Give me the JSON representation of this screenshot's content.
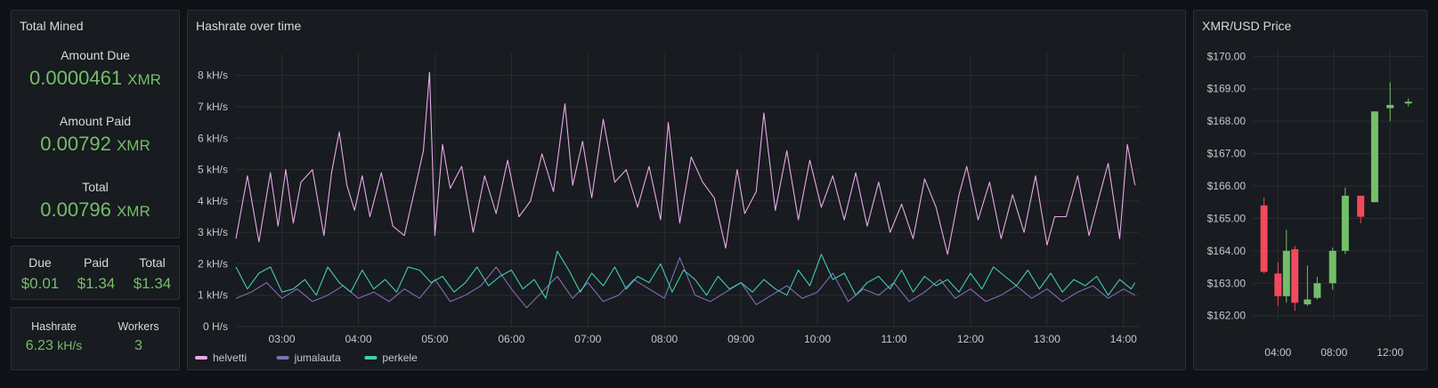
{
  "total_mined": {
    "title": "Total Mined",
    "amount_due_label": "Amount Due",
    "amount_due_value": "0.0000461",
    "amount_paid_label": "Amount Paid",
    "amount_paid_value": "0.00792",
    "total_label": "Total",
    "total_value": "0.00796",
    "unit": "XMR"
  },
  "usd_values": {
    "due_label": "Due",
    "due_value": "$0.01",
    "paid_label": "Paid",
    "paid_value": "$1.34",
    "total_label": "Total",
    "total_value": "$1.34"
  },
  "hashrate_stat": {
    "hashrate_label": "Hashrate",
    "hashrate_value": "6.23",
    "hashrate_unit": "kH/s",
    "workers_label": "Workers",
    "workers_value": "3"
  },
  "chart_data": [
    {
      "type": "line",
      "title": "Hashrate over time",
      "y_ticks": [
        "0 H/s",
        "1 kH/s",
        "2 kH/s",
        "3 kH/s",
        "4 kH/s",
        "5 kH/s",
        "6 kH/s",
        "7 kH/s",
        "8 kH/s"
      ],
      "ylim": [
        0,
        8.7
      ],
      "x_ticks": [
        "03:00",
        "04:00",
        "05:00",
        "06:00",
        "07:00",
        "08:00",
        "09:00",
        "10:00",
        "11:00",
        "12:00",
        "13:00",
        "14:00"
      ],
      "x_hours": [
        3,
        4,
        5,
        6,
        7,
        8,
        9,
        10,
        11,
        12,
        13,
        14
      ],
      "xlim": [
        2.4,
        14.2
      ],
      "grid": true,
      "legend_position": "bottom-left",
      "series": [
        {
          "name": "helvetti",
          "color": "#e8a9e8",
          "x": [
            2.4,
            2.55,
            2.7,
            2.85,
            2.95,
            3.05,
            3.15,
            3.25,
            3.4,
            3.55,
            3.65,
            3.75,
            3.85,
            3.95,
            4.05,
            4.15,
            4.3,
            4.45,
            4.6,
            4.75,
            4.85,
            4.93,
            5.0,
            5.1,
            5.2,
            5.35,
            5.5,
            5.65,
            5.8,
            5.95,
            6.1,
            6.25,
            6.4,
            6.55,
            6.7,
            6.8,
            6.93,
            7.05,
            7.2,
            7.35,
            7.5,
            7.65,
            7.8,
            7.95,
            8.05,
            8.2,
            8.35,
            8.5,
            8.65,
            8.8,
            8.95,
            9.05,
            9.2,
            9.3,
            9.45,
            9.6,
            9.75,
            9.9,
            10.05,
            10.2,
            10.35,
            10.5,
            10.65,
            10.8,
            10.95,
            11.1,
            11.25,
            11.4,
            11.55,
            11.7,
            11.85,
            11.95,
            12.1,
            12.25,
            12.4,
            12.55,
            12.7,
            12.85,
            13.0,
            13.1,
            13.25,
            13.4,
            13.55,
            13.7,
            13.8,
            13.95,
            14.05,
            14.15
          ],
          "values": [
            2.8,
            4.8,
            2.7,
            4.9,
            3.2,
            5.0,
            3.3,
            4.6,
            5.0,
            2.9,
            4.9,
            6.2,
            4.5,
            3.7,
            4.8,
            3.5,
            4.9,
            3.2,
            2.9,
            4.5,
            5.6,
            8.1,
            2.9,
            5.8,
            4.4,
            5.1,
            3.0,
            4.8,
            3.6,
            5.3,
            3.5,
            4.0,
            5.5,
            4.3,
            7.1,
            4.5,
            5.9,
            4.1,
            6.6,
            4.6,
            5.0,
            3.8,
            5.1,
            3.4,
            6.5,
            3.3,
            5.4,
            4.6,
            4.1,
            2.5,
            5.0,
            3.6,
            4.3,
            6.8,
            3.7,
            5.6,
            3.4,
            5.3,
            3.8,
            4.8,
            3.4,
            4.9,
            3.2,
            4.6,
            3.0,
            3.9,
            2.8,
            4.7,
            3.8,
            2.3,
            4.2,
            5.1,
            3.4,
            4.6,
            2.8,
            4.2,
            3.0,
            4.8,
            2.6,
            3.5,
            3.5,
            4.8,
            2.9,
            4.3,
            5.2,
            2.8,
            5.8,
            4.5
          ]
        },
        {
          "name": "jumalauta",
          "color": "#806eb7",
          "x": [
            2.4,
            2.6,
            2.8,
            3.0,
            3.2,
            3.4,
            3.6,
            3.8,
            4.0,
            4.2,
            4.4,
            4.6,
            4.8,
            5.0,
            5.2,
            5.4,
            5.6,
            5.8,
            6.0,
            6.2,
            6.4,
            6.6,
            6.8,
            7.0,
            7.2,
            7.4,
            7.6,
            7.8,
            8.0,
            8.2,
            8.4,
            8.6,
            8.8,
            9.0,
            9.2,
            9.4,
            9.6,
            9.8,
            10.0,
            10.2,
            10.4,
            10.6,
            10.8,
            11.0,
            11.2,
            11.4,
            11.6,
            11.8,
            12.0,
            12.2,
            12.4,
            12.6,
            12.8,
            13.0,
            13.2,
            13.4,
            13.6,
            13.8,
            14.0,
            14.15
          ],
          "values": [
            0.9,
            1.1,
            1.4,
            0.9,
            1.2,
            0.8,
            1.0,
            1.3,
            0.9,
            1.1,
            0.8,
            1.2,
            0.9,
            1.5,
            0.8,
            1.0,
            1.3,
            1.9,
            1.2,
            0.6,
            1.1,
            1.6,
            0.9,
            1.4,
            0.8,
            1.0,
            1.5,
            1.2,
            0.9,
            2.2,
            1.0,
            0.8,
            1.1,
            1.4,
            0.7,
            1.0,
            1.3,
            0.9,
            1.1,
            1.7,
            0.8,
            1.2,
            1.0,
            1.4,
            0.8,
            1.1,
            1.5,
            0.9,
            1.2,
            0.8,
            1.0,
            1.3,
            0.9,
            1.2,
            0.8,
            1.1,
            1.3,
            0.9,
            1.2,
            1.0
          ]
        },
        {
          "name": "perkele",
          "color": "#3fcfb0",
          "x": [
            2.4,
            2.55,
            2.7,
            2.85,
            3.0,
            3.15,
            3.3,
            3.45,
            3.6,
            3.75,
            3.9,
            4.05,
            4.2,
            4.35,
            4.5,
            4.65,
            4.8,
            4.95,
            5.1,
            5.25,
            5.4,
            5.55,
            5.7,
            5.85,
            6.0,
            6.15,
            6.3,
            6.45,
            6.6,
            6.75,
            6.9,
            7.05,
            7.2,
            7.35,
            7.5,
            7.65,
            7.8,
            7.95,
            8.1,
            8.25,
            8.4,
            8.55,
            8.7,
            8.85,
            9.0,
            9.15,
            9.3,
            9.45,
            9.6,
            9.75,
            9.9,
            10.05,
            10.2,
            10.35,
            10.5,
            10.65,
            10.8,
            10.95,
            11.1,
            11.25,
            11.4,
            11.55,
            11.7,
            11.85,
            12.0,
            12.15,
            12.3,
            12.45,
            12.6,
            12.75,
            12.9,
            13.05,
            13.2,
            13.35,
            13.5,
            13.65,
            13.8,
            13.95,
            14.1,
            14.15
          ],
          "values": [
            1.9,
            1.2,
            1.7,
            1.9,
            1.1,
            1.2,
            1.5,
            1.0,
            1.9,
            1.4,
            1.1,
            1.8,
            1.2,
            1.5,
            1.1,
            1.9,
            1.8,
            1.4,
            1.6,
            1.1,
            1.4,
            1.9,
            1.3,
            1.6,
            1.8,
            1.2,
            1.5,
            0.9,
            2.4,
            1.8,
            1.1,
            1.7,
            1.3,
            1.9,
            1.2,
            1.6,
            1.4,
            2.0,
            1.1,
            1.8,
            1.5,
            1.0,
            1.6,
            1.2,
            1.4,
            1.1,
            1.5,
            1.2,
            1.0,
            1.8,
            1.3,
            2.3,
            1.5,
            1.7,
            1.0,
            1.4,
            1.6,
            1.2,
            1.8,
            1.1,
            1.6,
            1.3,
            1.5,
            1.1,
            1.7,
            1.2,
            1.9,
            1.6,
            1.3,
            1.8,
            1.2,
            1.7,
            1.1,
            1.5,
            1.3,
            1.6,
            1.0,
            1.5,
            1.2,
            1.4
          ]
        }
      ]
    },
    {
      "type": "candlestick",
      "title": "XMR/USD Price",
      "y_ticks": [
        "$162.00",
        "$163.00",
        "$164.00",
        "$165.00",
        "$166.00",
        "$167.00",
        "$168.00",
        "$169.00",
        "$170.00"
      ],
      "ylim": [
        161.8,
        170.2
      ],
      "x_ticks": [
        "04:00",
        "08:00",
        "12:00"
      ],
      "x_hours": [
        4,
        8,
        12
      ],
      "xlim": [
        2.2,
        14.4
      ],
      "up_color": "#73bf69",
      "down_color": "#f2495c",
      "candles": [
        {
          "t": 3,
          "open": 165.4,
          "high": 165.65,
          "low": 163.3,
          "close": 163.35
        },
        {
          "t": 4,
          "open": 163.3,
          "high": 163.65,
          "low": 162.3,
          "close": 162.6
        },
        {
          "t": 4.6,
          "open": 162.6,
          "high": 164.65,
          "low": 162.4,
          "close": 164.0
        },
        {
          "t": 5.2,
          "open": 164.05,
          "high": 164.15,
          "low": 162.15,
          "close": 162.4
        },
        {
          "t": 6.1,
          "open": 162.35,
          "high": 163.55,
          "low": 162.3,
          "close": 162.5
        },
        {
          "t": 6.8,
          "open": 162.55,
          "high": 163.2,
          "low": 162.5,
          "close": 163.0
        },
        {
          "t": 7.9,
          "open": 163.0,
          "high": 164.1,
          "low": 162.8,
          "close": 164.0
        },
        {
          "t": 8.8,
          "open": 164.0,
          "high": 165.95,
          "low": 163.9,
          "close": 165.7
        },
        {
          "t": 9.9,
          "open": 165.7,
          "high": 165.7,
          "low": 164.85,
          "close": 165.05
        },
        {
          "t": 10.9,
          "open": 165.5,
          "high": 168.3,
          "low": 165.5,
          "close": 168.3
        },
        {
          "t": 12.0,
          "open": 168.4,
          "high": 169.2,
          "low": 168.0,
          "close": 168.5
        },
        {
          "t": 13.3,
          "open": 168.55,
          "high": 168.7,
          "low": 168.45,
          "close": 168.6
        }
      ]
    }
  ]
}
